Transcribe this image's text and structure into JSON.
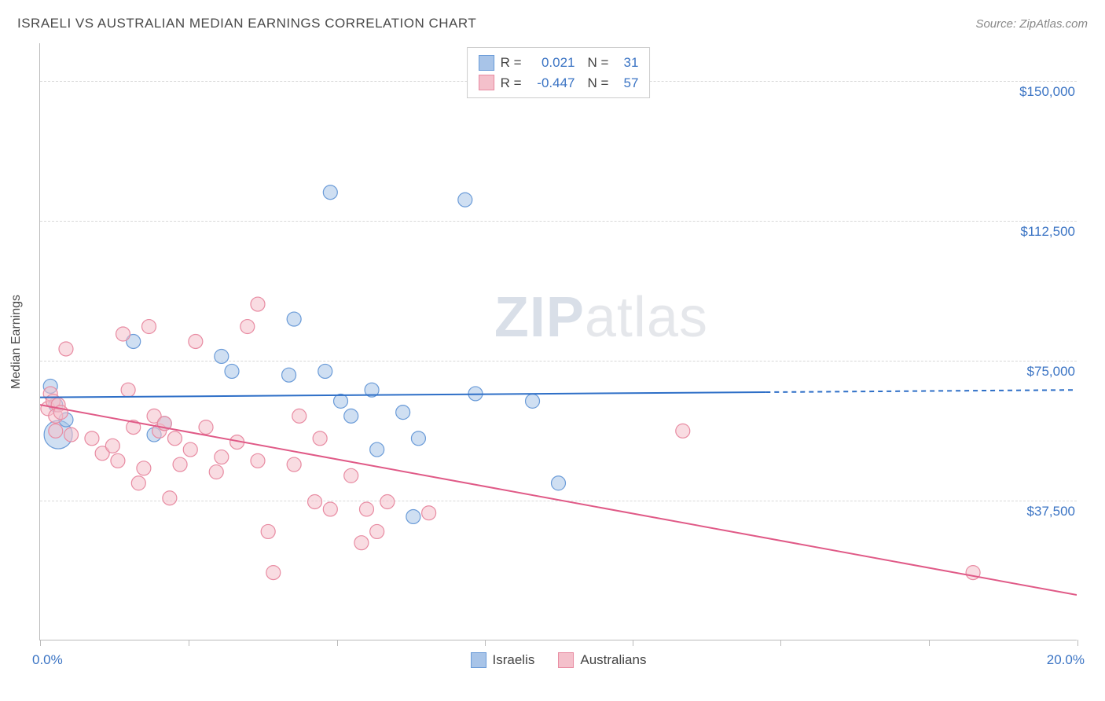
{
  "title": "ISRAELI VS AUSTRALIAN MEDIAN EARNINGS CORRELATION CHART",
  "source_label": "Source: ZipAtlas.com",
  "watermark": {
    "part1": "ZIP",
    "part2": "atlas"
  },
  "yaxis_title": "Median Earnings",
  "chart": {
    "type": "scatter",
    "xlim": [
      0.0,
      20.0
    ],
    "ylim": [
      0,
      160000
    ],
    "x_unit": "%",
    "y_unit": "$",
    "x_tick_labels": {
      "left": "0.0%",
      "right": "20.0%"
    },
    "y_ticks": [
      {
        "value": 37500,
        "label": "$37,500"
      },
      {
        "value": 75000,
        "label": "$75,000"
      },
      {
        "value": 112500,
        "label": "$112,500"
      },
      {
        "value": 150000,
        "label": "$150,000"
      }
    ],
    "x_tick_positions_pct": [
      0,
      14.3,
      28.6,
      42.9,
      57.1,
      71.4,
      85.7,
      100
    ],
    "grid_color": "#d8d8d8",
    "axis_color": "#bbbbbb",
    "background_color": "#ffffff",
    "label_color": "#3b74c4",
    "text_color": "#4a4a4a",
    "marker_radius": 9,
    "marker_opacity": 0.55,
    "reg_line_width": 2,
    "series": [
      {
        "key": "israelis",
        "label": "Israelis",
        "fill": "#a8c4e8",
        "stroke": "#6a9bd8",
        "line_color": "#2e6fc7",
        "R": "0.021",
        "N": "31",
        "regression": {
          "x1": 0.0,
          "y1": 65000,
          "x2": 20.0,
          "y2": 67000,
          "solid_until_x": 14.0
        },
        "points": [
          {
            "x": 0.2,
            "y": 68000
          },
          {
            "x": 0.3,
            "y": 63000
          },
          {
            "x": 0.35,
            "y": 55000,
            "r": 18
          },
          {
            "x": 0.5,
            "y": 59000
          },
          {
            "x": 1.8,
            "y": 80000
          },
          {
            "x": 2.2,
            "y": 55000
          },
          {
            "x": 2.4,
            "y": 58000
          },
          {
            "x": 3.5,
            "y": 76000
          },
          {
            "x": 3.7,
            "y": 72000
          },
          {
            "x": 4.8,
            "y": 71000
          },
          {
            "x": 4.9,
            "y": 86000
          },
          {
            "x": 5.5,
            "y": 72000
          },
          {
            "x": 5.6,
            "y": 120000
          },
          {
            "x": 5.8,
            "y": 64000
          },
          {
            "x": 6.0,
            "y": 60000
          },
          {
            "x": 6.4,
            "y": 67000
          },
          {
            "x": 6.5,
            "y": 51000
          },
          {
            "x": 7.0,
            "y": 61000
          },
          {
            "x": 7.2,
            "y": 33000
          },
          {
            "x": 7.3,
            "y": 54000
          },
          {
            "x": 8.2,
            "y": 118000
          },
          {
            "x": 8.4,
            "y": 66000
          },
          {
            "x": 9.5,
            "y": 64000
          },
          {
            "x": 10.0,
            "y": 42000
          }
        ]
      },
      {
        "key": "australians",
        "label": "Australians",
        "fill": "#f4c0cb",
        "stroke": "#e88ba2",
        "line_color": "#e05a87",
        "R": "-0.447",
        "N": "57",
        "regression": {
          "x1": 0.0,
          "y1": 63000,
          "x2": 20.0,
          "y2": 12000,
          "solid_until_x": 20.0
        },
        "points": [
          {
            "x": 0.15,
            "y": 62000
          },
          {
            "x": 0.2,
            "y": 66000
          },
          {
            "x": 0.25,
            "y": 64000
          },
          {
            "x": 0.3,
            "y": 60000
          },
          {
            "x": 0.3,
            "y": 56000
          },
          {
            "x": 0.35,
            "y": 63000
          },
          {
            "x": 0.4,
            "y": 61000
          },
          {
            "x": 0.5,
            "y": 78000
          },
          {
            "x": 0.6,
            "y": 55000
          },
          {
            "x": 1.0,
            "y": 54000
          },
          {
            "x": 1.2,
            "y": 50000
          },
          {
            "x": 1.4,
            "y": 52000
          },
          {
            "x": 1.5,
            "y": 48000
          },
          {
            "x": 1.6,
            "y": 82000
          },
          {
            "x": 1.7,
            "y": 67000
          },
          {
            "x": 1.8,
            "y": 57000
          },
          {
            "x": 1.9,
            "y": 42000
          },
          {
            "x": 2.0,
            "y": 46000
          },
          {
            "x": 2.1,
            "y": 84000
          },
          {
            "x": 2.2,
            "y": 60000
          },
          {
            "x": 2.3,
            "y": 56000
          },
          {
            "x": 2.4,
            "y": 58000
          },
          {
            "x": 2.5,
            "y": 38000
          },
          {
            "x": 2.6,
            "y": 54000
          },
          {
            "x": 2.7,
            "y": 47000
          },
          {
            "x": 2.9,
            "y": 51000
          },
          {
            "x": 3.0,
            "y": 80000
          },
          {
            "x": 3.2,
            "y": 57000
          },
          {
            "x": 3.4,
            "y": 45000
          },
          {
            "x": 3.5,
            "y": 49000
          },
          {
            "x": 3.8,
            "y": 53000
          },
          {
            "x": 4.0,
            "y": 84000
          },
          {
            "x": 4.2,
            "y": 48000
          },
          {
            "x": 4.2,
            "y": 90000
          },
          {
            "x": 4.4,
            "y": 29000
          },
          {
            "x": 4.5,
            "y": 18000
          },
          {
            "x": 4.9,
            "y": 47000
          },
          {
            "x": 5.0,
            "y": 60000
          },
          {
            "x": 5.3,
            "y": 37000
          },
          {
            "x": 5.4,
            "y": 54000
          },
          {
            "x": 5.6,
            "y": 35000
          },
          {
            "x": 6.0,
            "y": 44000
          },
          {
            "x": 6.2,
            "y": 26000
          },
          {
            "x": 6.3,
            "y": 35000
          },
          {
            "x": 6.5,
            "y": 29000
          },
          {
            "x": 6.7,
            "y": 37000
          },
          {
            "x": 7.5,
            "y": 34000
          },
          {
            "x": 12.4,
            "y": 56000
          },
          {
            "x": 18.0,
            "y": 18000
          }
        ]
      }
    ]
  },
  "corr_legend": {
    "R_prefix": "R =",
    "N_prefix": "N ="
  }
}
